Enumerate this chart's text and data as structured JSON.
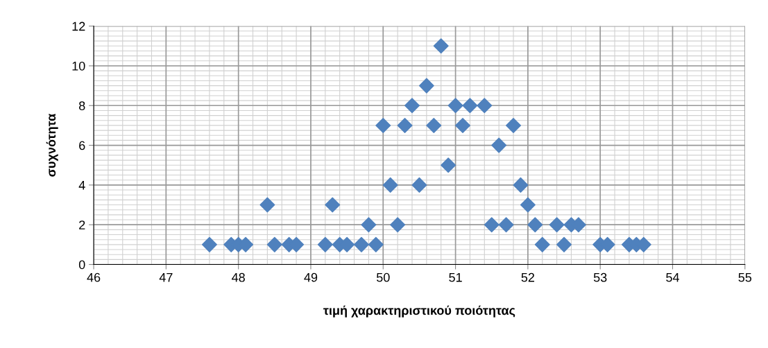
{
  "chart_data": {
    "type": "scatter",
    "xlabel": "τιμή χαρακτηριστικού ποιότητας",
    "ylabel": "συχνότητα",
    "x": [
      47.6,
      47.9,
      48.0,
      48.1,
      48.4,
      48.5,
      48.7,
      48.8,
      49.2,
      49.3,
      49.4,
      49.5,
      49.7,
      49.8,
      49.9,
      50.0,
      50.1,
      50.2,
      50.3,
      50.4,
      50.5,
      50.6,
      50.7,
      50.8,
      50.9,
      51.0,
      51.1,
      51.2,
      51.4,
      51.5,
      51.6,
      51.7,
      51.8,
      51.9,
      52.0,
      52.1,
      52.2,
      52.4,
      52.5,
      52.6,
      52.7,
      53.0,
      53.1,
      53.4,
      53.5,
      53.6
    ],
    "series": [
      {
        "color": "#4f81bd",
        "values": [
          1,
          1,
          1,
          1,
          3,
          1,
          1,
          1,
          1,
          3,
          1,
          1,
          1,
          2,
          1,
          7,
          4,
          2,
          7,
          8,
          4,
          9,
          7,
          11,
          5,
          8,
          7,
          8,
          8,
          2,
          6,
          2,
          7,
          4,
          3,
          2,
          1,
          2,
          1,
          2,
          2,
          1,
          1,
          1,
          1,
          1
        ]
      }
    ],
    "xlim": [
      46,
      55
    ],
    "xticks": [
      46,
      47,
      48,
      49,
      50,
      51,
      52,
      53,
      54,
      55
    ],
    "ylim": [
      0,
      12
    ],
    "yticks": [
      0,
      2,
      4,
      6,
      8,
      10,
      12
    ],
    "grid": true,
    "marker": "diamond"
  }
}
